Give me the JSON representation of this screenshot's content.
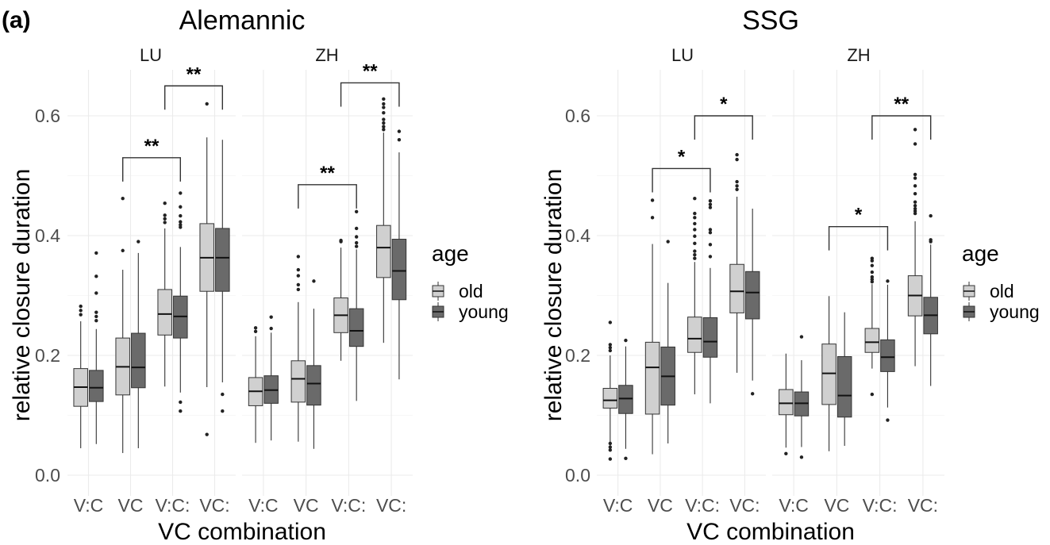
{
  "panel_label": "(a)",
  "colors": {
    "old": "#d0d0d0",
    "young": "#6a6a6a",
    "outline": "#333333",
    "median": "#111111",
    "outlier": "#222222",
    "bracket": "#333333"
  },
  "chart_data": [
    {
      "type": "boxplot",
      "title": "Alemannic",
      "xlabel": "VC combination",
      "ylabel": "relative closure duration",
      "ylim": [
        -0.005,
        0.66
      ],
      "yticks": [
        0.0,
        0.2,
        0.4,
        0.6
      ],
      "ytick_labels": [
        "0.0",
        "0.2",
        "0.4",
        "0.6"
      ],
      "grid": true,
      "legend": {
        "title": "age",
        "entries": [
          "old",
          "young"
        ],
        "placement": "right"
      },
      "categories": [
        "V:C",
        "VC",
        "V:C:",
        "VC:"
      ],
      "facets": [
        {
          "label": "LU",
          "groups": [
            {
              "category": "V:C",
              "age": "old",
              "min": 0.045,
              "q1": 0.115,
              "median": 0.147,
              "q3": 0.178,
              "max": 0.257,
              "outliers": [
                0.268,
                0.275,
                0.282
              ]
            },
            {
              "category": "V:C",
              "age": "young",
              "min": 0.052,
              "q1": 0.123,
              "median": 0.146,
              "q3": 0.175,
              "max": 0.244,
              "outliers": [
                0.258,
                0.265,
                0.272,
                0.304,
                0.332,
                0.371
              ]
            },
            {
              "category": "VC",
              "age": "old",
              "min": 0.037,
              "q1": 0.134,
              "median": 0.181,
              "q3": 0.229,
              "max": 0.343,
              "outliers": [
                0.375,
                0.462
              ]
            },
            {
              "category": "VC",
              "age": "young",
              "min": 0.045,
              "q1": 0.146,
              "median": 0.18,
              "q3": 0.237,
              "max": 0.371,
              "outliers": [
                0.39
              ]
            },
            {
              "category": "V:C:",
              "age": "old",
              "min": 0.148,
              "q1": 0.234,
              "median": 0.269,
              "q3": 0.31,
              "max": 0.412,
              "outliers": [
                0.422,
                0.428,
                0.434,
                0.454
              ]
            },
            {
              "category": "V:C:",
              "age": "young",
              "min": 0.138,
              "q1": 0.229,
              "median": 0.265,
              "q3": 0.299,
              "max": 0.381,
              "outliers": [
                0.107,
                0.122,
                0.414,
                0.418,
                0.423,
                0.433,
                0.448,
                0.471
              ]
            },
            {
              "category": "VC:",
              "age": "old",
              "min": 0.147,
              "q1": 0.307,
              "median": 0.363,
              "q3": 0.42,
              "max": 0.564,
              "outliers": [
                0.068,
                0.62
              ]
            },
            {
              "category": "VC:",
              "age": "young",
              "min": 0.155,
              "q1": 0.307,
              "median": 0.363,
              "q3": 0.412,
              "max": 0.56,
              "outliers": [
                0.107,
                0.135
              ]
            }
          ],
          "significance": [
            {
              "from": "VC",
              "to": "V:C:",
              "label": "**",
              "y": 0.53
            },
            {
              "from": "V:C:",
              "to": "VC:",
              "label": "**",
              "y": 0.65
            }
          ]
        },
        {
          "label": "ZH",
          "groups": [
            {
              "category": "V:C",
              "age": "old",
              "min": 0.054,
              "q1": 0.116,
              "median": 0.14,
              "q3": 0.163,
              "max": 0.232,
              "outliers": [
                0.24,
                0.246
              ]
            },
            {
              "category": "V:C",
              "age": "young",
              "min": 0.058,
              "q1": 0.12,
              "median": 0.142,
              "q3": 0.166,
              "max": 0.238,
              "outliers": [
                0.245,
                0.264
              ]
            },
            {
              "category": "VC",
              "age": "old",
              "min": 0.056,
              "q1": 0.122,
              "median": 0.161,
              "q3": 0.191,
              "max": 0.289,
              "outliers": [
                0.31,
                0.318,
                0.333,
                0.343,
                0.365
              ]
            },
            {
              "category": "VC",
              "age": "young",
              "min": 0.044,
              "q1": 0.117,
              "median": 0.153,
              "q3": 0.183,
              "max": 0.278,
              "outliers": [
                0.324
              ]
            },
            {
              "category": "V:C:",
              "age": "old",
              "min": 0.191,
              "q1": 0.238,
              "median": 0.267,
              "q3": 0.296,
              "max": 0.38,
              "outliers": [
                0.39,
                0.392
              ]
            },
            {
              "category": "V:C:",
              "age": "young",
              "min": 0.124,
              "q1": 0.215,
              "median": 0.241,
              "q3": 0.278,
              "max": 0.377,
              "outliers": [
                0.382,
                0.388,
                0.398,
                0.412,
                0.44
              ]
            },
            {
              "category": "VC:",
              "age": "old",
              "min": 0.221,
              "q1": 0.33,
              "median": 0.38,
              "q3": 0.417,
              "max": 0.572,
              "outliers": [
                0.577,
                0.582,
                0.588,
                0.594,
                0.605,
                0.614,
                0.62,
                0.628
              ]
            },
            {
              "category": "VC:",
              "age": "young",
              "min": 0.16,
              "q1": 0.293,
              "median": 0.341,
              "q3": 0.394,
              "max": 0.539,
              "outliers": [
                0.56,
                0.574
              ]
            }
          ],
          "significance": [
            {
              "from": "VC",
              "to": "V:C:",
              "label": "**",
              "y": 0.485
            },
            {
              "from": "V:C:",
              "to": "VC:",
              "label": "**",
              "y": 0.655
            }
          ]
        }
      ]
    },
    {
      "type": "boxplot",
      "title": "SSG",
      "xlabel": "VC combination",
      "ylabel": "relative closure duration",
      "ylim": [
        -0.005,
        0.66
      ],
      "yticks": [
        0.0,
        0.2,
        0.4,
        0.6
      ],
      "ytick_labels": [
        "0.0",
        "0.2",
        "0.4",
        "0.6"
      ],
      "grid": true,
      "legend": {
        "title": "age",
        "entries": [
          "old",
          "young"
        ],
        "placement": "right"
      },
      "categories": [
        "V:C",
        "VC",
        "V:C:",
        "VC:"
      ],
      "facets": [
        {
          "label": "LU",
          "groups": [
            {
              "category": "V:C",
              "age": "old",
              "min": 0.047,
              "q1": 0.112,
              "median": 0.125,
              "q3": 0.145,
              "max": 0.2,
              "outliers": [
                0.027,
                0.042,
                0.047,
                0.053,
                0.208,
                0.213,
                0.218,
                0.255
              ]
            },
            {
              "category": "V:C",
              "age": "young",
              "min": 0.044,
              "q1": 0.103,
              "median": 0.128,
              "q3": 0.15,
              "max": 0.215,
              "outliers": [
                0.028,
                0.225
              ]
            },
            {
              "category": "VC",
              "age": "old",
              "min": 0.035,
              "q1": 0.102,
              "median": 0.18,
              "q3": 0.222,
              "max": 0.386,
              "outliers": [
                0.43,
                0.459
              ]
            },
            {
              "category": "VC",
              "age": "young",
              "min": 0.053,
              "q1": 0.117,
              "median": 0.165,
              "q3": 0.214,
              "max": 0.321,
              "outliers": [
                0.39
              ]
            },
            {
              "category": "V:C:",
              "age": "old",
              "min": 0.135,
              "q1": 0.205,
              "median": 0.228,
              "q3": 0.264,
              "max": 0.356,
              "outliers": [
                0.362,
                0.368,
                0.374,
                0.387,
                0.399,
                0.41,
                0.42,
                0.43,
                0.437,
                0.462
              ]
            },
            {
              "category": "V:C:",
              "age": "young",
              "min": 0.12,
              "q1": 0.197,
              "median": 0.223,
              "q3": 0.263,
              "max": 0.346,
              "outliers": [
                0.365,
                0.385,
                0.405,
                0.41,
                0.447,
                0.452,
                0.458
              ]
            },
            {
              "category": "VC:",
              "age": "old",
              "min": 0.171,
              "q1": 0.271,
              "median": 0.307,
              "q3": 0.352,
              "max": 0.465,
              "outliers": [
                0.477,
                0.483,
                0.49,
                0.527,
                0.535
              ]
            },
            {
              "category": "VC:",
              "age": "young",
              "min": 0.158,
              "q1": 0.261,
              "median": 0.305,
              "q3": 0.34,
              "max": 0.445,
              "outliers": [
                0.136
              ]
            }
          ],
          "significance": [
            {
              "from": "VC",
              "to": "V:C:",
              "label": "*",
              "y": 0.512
            },
            {
              "from": "V:C:",
              "to": "VC:",
              "label": "*",
              "y": 0.6
            }
          ]
        },
        {
          "label": "ZH",
          "groups": [
            {
              "category": "V:C",
              "age": "old",
              "min": 0.046,
              "q1": 0.101,
              "median": 0.12,
              "q3": 0.143,
              "max": 0.203,
              "outliers": [
                0.036
              ]
            },
            {
              "category": "V:C",
              "age": "young",
              "min": 0.047,
              "q1": 0.099,
              "median": 0.12,
              "q3": 0.139,
              "max": 0.192,
              "outliers": [
                0.03,
                0.231
              ]
            },
            {
              "category": "VC",
              "age": "old",
              "min": 0.04,
              "q1": 0.118,
              "median": 0.17,
              "q3": 0.219,
              "max": 0.299,
              "outliers": []
            },
            {
              "category": "VC",
              "age": "young",
              "min": 0.049,
              "q1": 0.097,
              "median": 0.133,
              "q3": 0.198,
              "max": 0.272,
              "outliers": []
            },
            {
              "category": "V:C:",
              "age": "old",
              "min": 0.178,
              "q1": 0.205,
              "median": 0.222,
              "q3": 0.245,
              "max": 0.319,
              "outliers": [
                0.135,
                0.323,
                0.327,
                0.331,
                0.339,
                0.35,
                0.358,
                0.362
              ]
            },
            {
              "category": "V:C:",
              "age": "young",
              "min": 0.113,
              "q1": 0.173,
              "median": 0.197,
              "q3": 0.226,
              "max": 0.318,
              "outliers": [
                0.092,
                0.324
              ]
            },
            {
              "category": "VC:",
              "age": "old",
              "min": 0.182,
              "q1": 0.266,
              "median": 0.3,
              "q3": 0.333,
              "max": 0.424,
              "outliers": [
                0.437,
                0.441,
                0.445,
                0.45,
                0.456,
                0.47,
                0.483,
                0.496,
                0.502,
                0.553,
                0.577
              ]
            },
            {
              "category": "VC:",
              "age": "young",
              "min": 0.149,
              "q1": 0.236,
              "median": 0.267,
              "q3": 0.297,
              "max": 0.385,
              "outliers": [
                0.39,
                0.393,
                0.433
              ]
            }
          ],
          "significance": [
            {
              "from": "VC",
              "to": "V:C:",
              "label": "*",
              "y": 0.415
            },
            {
              "from": "V:C:",
              "to": "VC:",
              "label": "**",
              "y": 0.6
            }
          ]
        }
      ]
    }
  ]
}
